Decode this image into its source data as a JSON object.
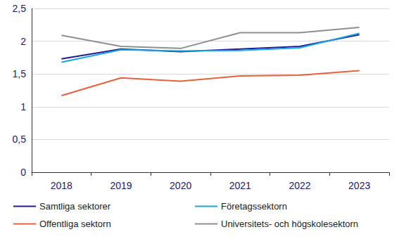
{
  "chart_data": {
    "type": "line",
    "categories": [
      "2018",
      "2019",
      "2020",
      "2021",
      "2022",
      "2023"
    ],
    "series": [
      {
        "name": "Samtliga sektorer",
        "color": "#1e1a9a",
        "values": [
          1.73,
          1.88,
          1.84,
          1.88,
          1.92,
          2.1
        ]
      },
      {
        "name": "Företagssektorn",
        "color": "#1aa6e0",
        "values": [
          1.68,
          1.87,
          1.85,
          1.86,
          1.9,
          2.12
        ]
      },
      {
        "name": "Offentliga sektorn",
        "color": "#e8603c",
        "values": [
          1.17,
          1.44,
          1.39,
          1.47,
          1.48,
          1.55
        ]
      },
      {
        "name": "Universitets- och högskolesektorn",
        "color": "#8f8f8f",
        "values": [
          2.09,
          1.92,
          1.89,
          2.13,
          2.13,
          2.21
        ]
      }
    ],
    "ylim": [
      0,
      2.5
    ],
    "yticks": [
      0,
      {
        "value": 0.5,
        "label": "0,5"
      },
      1,
      {
        "value": 1.5,
        "label": "1,5"
      },
      2,
      {
        "value": 2.5,
        "label": "2,5"
      }
    ],
    "grid": true,
    "legend": "bottom"
  }
}
